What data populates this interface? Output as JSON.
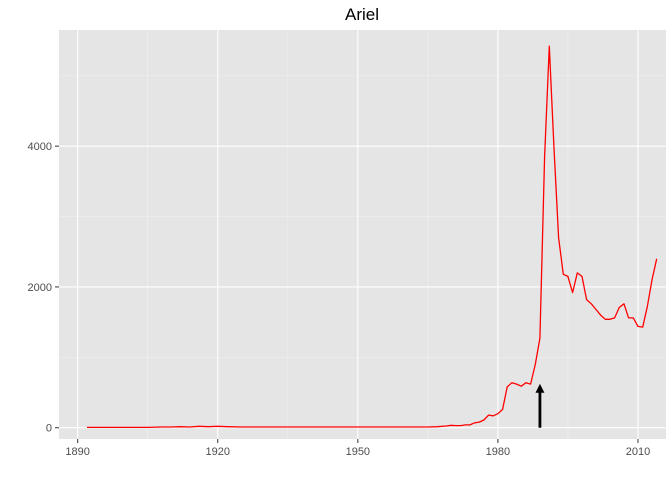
{
  "colors": {
    "panel_background": "#e5e5e5",
    "grid_major": "#ffffff",
    "grid_minor": "#f0f0f0",
    "series_line": "#ff0000",
    "annotation_arrow": "#000000",
    "tick_text": "#4d4d4d"
  },
  "chart_data": {
    "type": "line",
    "title": "Ariel",
    "xlabel": "",
    "ylabel": "",
    "xlim": [
      1886,
      2016
    ],
    "ylim": [
      -160,
      5650
    ],
    "x_ticks": [
      1890,
      1920,
      1950,
      1980,
      2010
    ],
    "y_ticks": [
      0,
      2000,
      4000
    ],
    "x_tick_labels": [
      "1890",
      "1920",
      "1950",
      "1980",
      "2010"
    ],
    "y_tick_labels": [
      "0",
      "2000",
      "4000"
    ],
    "grid": true,
    "legend": "none",
    "series": [
      {
        "color": "#ff0000",
        "x": [
          1892,
          1905,
          1908,
          1910,
          1912,
          1914,
          1916,
          1918,
          1920,
          1922,
          1925,
          1930,
          1935,
          1940,
          1945,
          1950,
          1955,
          1960,
          1965,
          1967,
          1969,
          1970,
          1971,
          1972,
          1973,
          1974,
          1975,
          1976,
          1977,
          1978,
          1979,
          1980,
          1981,
          1982,
          1983,
          1984,
          1985,
          1986,
          1987,
          1988,
          1989,
          1990,
          1991,
          1992,
          1993,
          1994,
          1995,
          1996,
          1997,
          1998,
          1999,
          2000,
          2001,
          2002,
          2003,
          2004,
          2005,
          2006,
          2007,
          2008,
          2009,
          2010,
          2011,
          2012,
          2013,
          2014
        ],
        "values": [
          5,
          5,
          10,
          10,
          15,
          10,
          20,
          15,
          20,
          15,
          10,
          10,
          10,
          10,
          10,
          10,
          10,
          10,
          10,
          15,
          25,
          35,
          30,
          30,
          40,
          40,
          70,
          80,
          110,
          180,
          170,
          200,
          260,
          580,
          640,
          620,
          590,
          640,
          620,
          900,
          1270,
          3850,
          5420,
          4000,
          2700,
          2180,
          2150,
          1920,
          2200,
          2150,
          1820,
          1760,
          1680,
          1600,
          1540,
          1540,
          1560,
          1710,
          1760,
          1560,
          1560,
          1440,
          1430,
          1720,
          2100,
          2400
        ]
      }
    ],
    "annotations": [
      {
        "type": "arrow",
        "x": 1989,
        "y_from": 0,
        "y_to": 560
      }
    ]
  }
}
